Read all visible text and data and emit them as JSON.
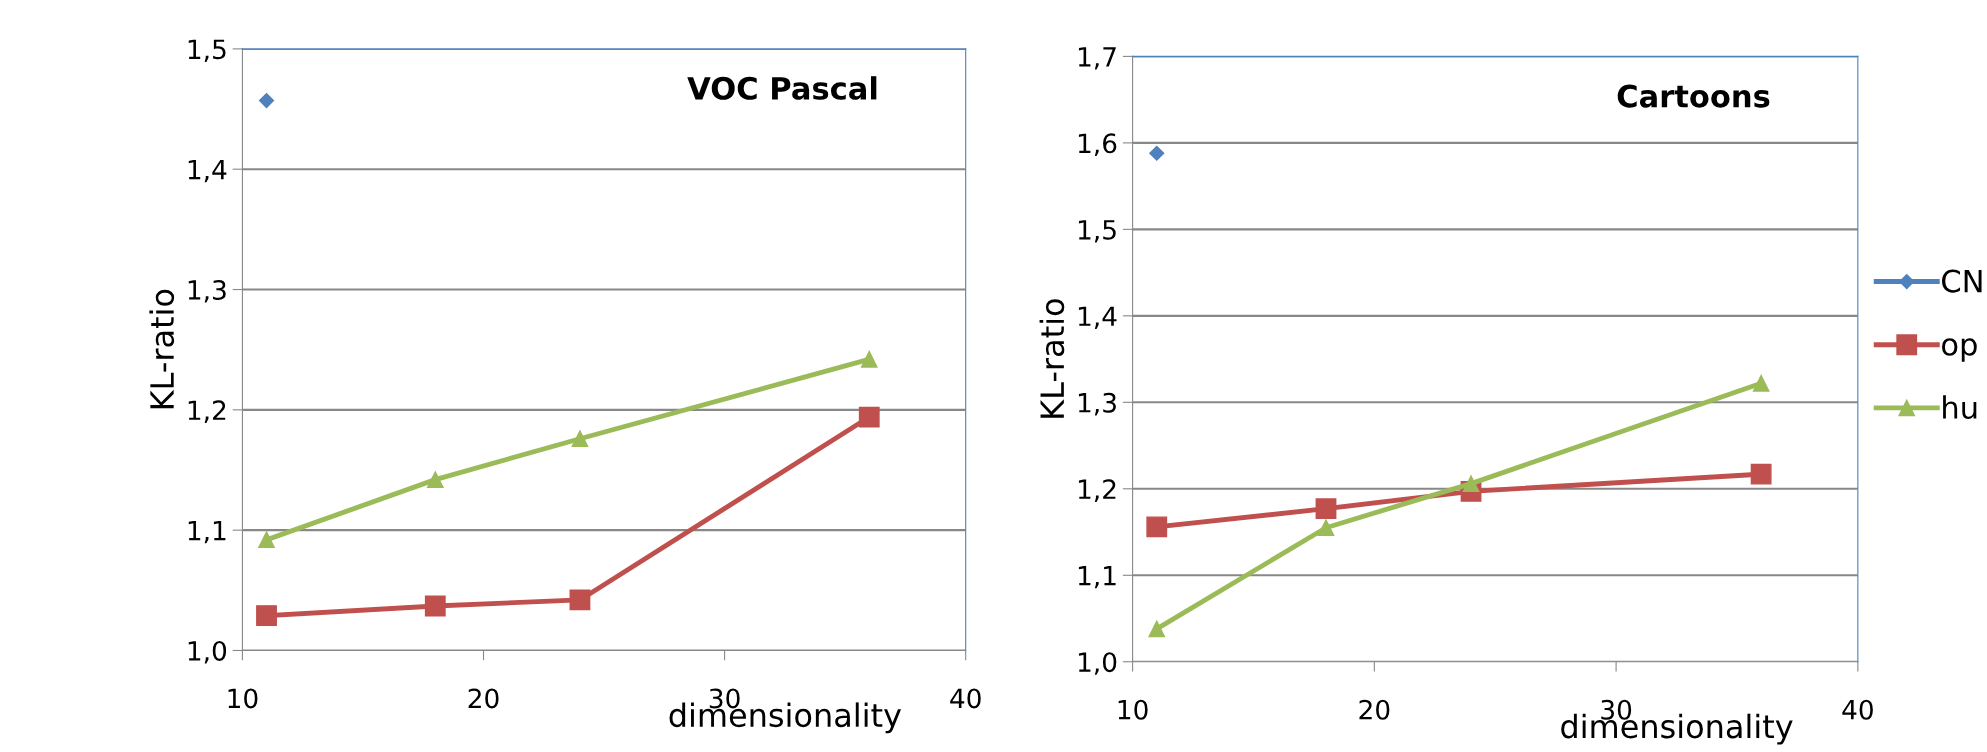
{
  "chart_data": [
    {
      "type": "line",
      "title": "VOC Pascal",
      "xlabel": "dimensionality",
      "ylabel": "KL-ratio",
      "xlim": [
        10,
        40
      ],
      "xticks": [
        10,
        20,
        30,
        40
      ],
      "ylim": [
        1.0,
        1.5
      ],
      "yticks": [
        {
          "value": 1.0,
          "label": "1,0"
        },
        {
          "value": 1.1,
          "label": "1,1"
        },
        {
          "value": 1.2,
          "label": "1,2"
        },
        {
          "value": 1.3,
          "label": "1,3"
        },
        {
          "value": 1.4,
          "label": "1,4"
        },
        {
          "value": 1.5,
          "label": "1,5"
        }
      ],
      "grid": "y",
      "legend": false,
      "x": [
        11,
        18,
        24,
        36
      ],
      "series": [
        {
          "color": "#4f81bd",
          "marker": "diamond",
          "values": [
            1.457,
            null,
            null,
            null
          ]
        },
        {
          "color": "#c0504d",
          "marker": "square",
          "values": [
            1.029,
            1.037,
            1.042,
            1.194
          ]
        },
        {
          "color": "#9bbb59",
          "marker": "triangle",
          "values": [
            1.092,
            1.142,
            1.176,
            1.242
          ]
        }
      ]
    },
    {
      "type": "line",
      "title": "Cartoons",
      "xlabel": "dimensionality",
      "ylabel": "KL-ratio",
      "xlim": [
        10,
        40
      ],
      "xticks": [
        10,
        20,
        30,
        40
      ],
      "ylim": [
        1.0,
        1.7
      ],
      "yticks": [
        {
          "value": 1.0,
          "label": "1,0"
        },
        {
          "value": 1.1,
          "label": "1,1"
        },
        {
          "value": 1.2,
          "label": "1,2"
        },
        {
          "value": 1.3,
          "label": "1,3"
        },
        {
          "value": 1.4,
          "label": "1,4"
        },
        {
          "value": 1.5,
          "label": "1,5"
        },
        {
          "value": 1.6,
          "label": "1,6"
        },
        {
          "value": 1.7,
          "label": "1,7"
        }
      ],
      "grid": "y",
      "legend": "right",
      "x": [
        11,
        18,
        24,
        36
      ],
      "series": [
        {
          "name": "CN",
          "color": "#4f81bd",
          "marker": "diamond",
          "values": [
            1.588,
            null,
            null,
            null
          ]
        },
        {
          "name": "op",
          "color": "#c0504d",
          "marker": "square",
          "values": [
            1.156,
            1.177,
            1.197,
            1.217
          ]
        },
        {
          "name": "hu",
          "color": "#9bbb59",
          "marker": "triangle",
          "values": [
            1.038,
            1.155,
            1.206,
            1.322
          ]
        }
      ]
    }
  ]
}
